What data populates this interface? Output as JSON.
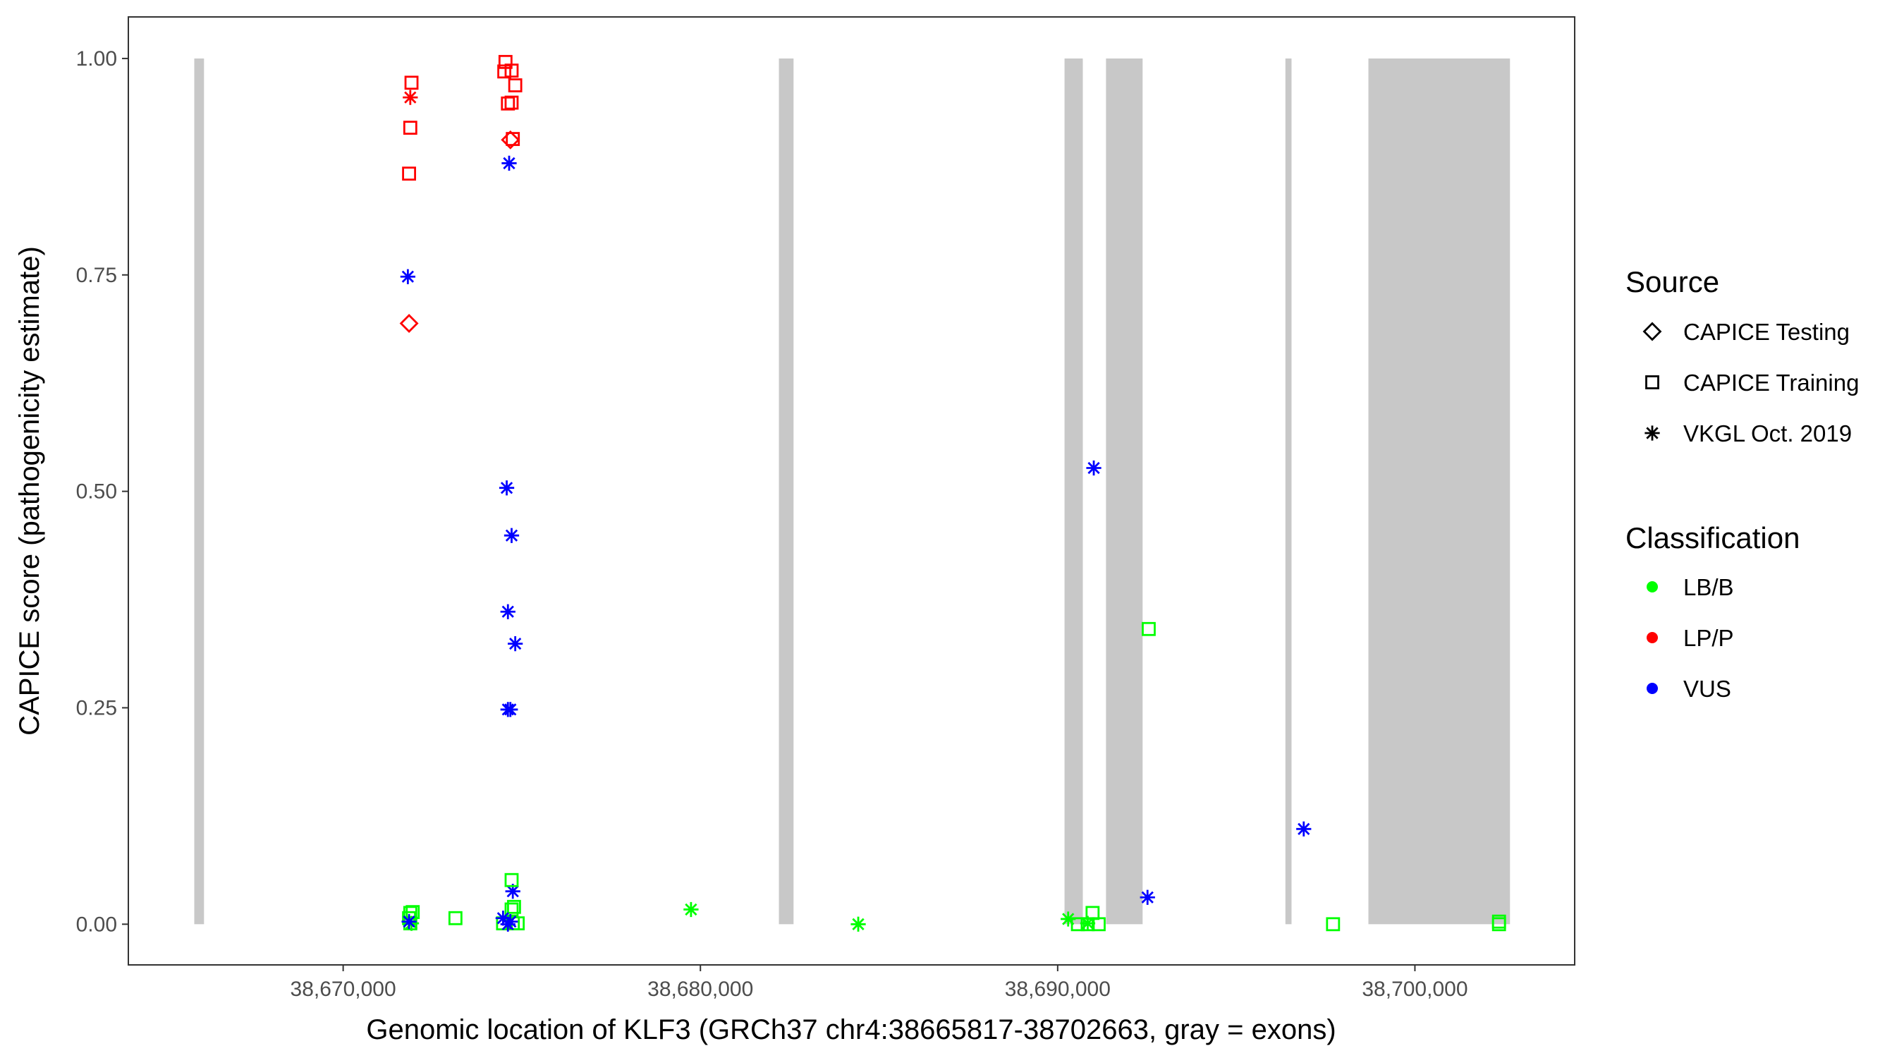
{
  "chart_data": {
    "type": "scatter",
    "xlabel": "Genomic location of KLF3 (GRCh37 chr4:38665817-38702663, gray = exons)",
    "ylabel": "CAPICE score (pathogenicity estimate)",
    "xlim": [
      38663987,
      38704472
    ],
    "ylim": [
      -0.047,
      1.048
    ],
    "x_ticks": [
      38670000,
      38680000,
      38690000,
      38700000
    ],
    "x_tick_labels": [
      "38,670,000",
      "38,680,000",
      "38,690,000",
      "38,700,000"
    ],
    "y_ticks": [
      0,
      0.25,
      0.5,
      0.75,
      1.0
    ],
    "y_tick_labels": [
      "0.00",
      "0.25",
      "0.50",
      "0.75",
      "1.00"
    ],
    "grid": false,
    "exon_color": "#c8c8c8",
    "exons": [
      [
        38665832,
        38666105
      ],
      [
        38682197,
        38682607
      ],
      [
        38690192,
        38690704
      ],
      [
        38691353,
        38692378
      ],
      [
        38696375,
        38696546
      ],
      [
        38698698,
        38702661
      ]
    ],
    "legend_placement": "right",
    "legend": {
      "source": {
        "title": "Source",
        "items": [
          {
            "label": "CAPICE Testing",
            "shape": "diamond"
          },
          {
            "label": "CAPICE Training",
            "shape": "square"
          },
          {
            "label": "VKGL Oct. 2019",
            "shape": "asterisk"
          }
        ]
      },
      "classification": {
        "title": "Classification",
        "items": [
          {
            "label": "LB/B",
            "color": "#00ff00"
          },
          {
            "label": "LP/P",
            "color": "#ff0000"
          },
          {
            "label": "VUS",
            "color": "#0000ff"
          }
        ]
      }
    },
    "points": [
      {
        "x": 38671913,
        "y": 0.972,
        "source": "CAPICE Training",
        "class": "LP/P"
      },
      {
        "x": 38671879,
        "y": 0.955,
        "source": "VKGL Oct. 2019",
        "class": "LP/P"
      },
      {
        "x": 38671879,
        "y": 0.92,
        "source": "CAPICE Training",
        "class": "LP/P"
      },
      {
        "x": 38671845,
        "y": 0.867,
        "source": "CAPICE Training",
        "class": "LP/P"
      },
      {
        "x": 38671845,
        "y": 0.694,
        "source": "CAPICE Testing",
        "class": "LP/P"
      },
      {
        "x": 38674544,
        "y": 0.996,
        "source": "CAPICE Training",
        "class": "LP/P"
      },
      {
        "x": 38674510,
        "y": 0.985,
        "source": "CAPICE Training",
        "class": "LP/P"
      },
      {
        "x": 38674715,
        "y": 0.986,
        "source": "CAPICE Training",
        "class": "LP/P"
      },
      {
        "x": 38674817,
        "y": 0.969,
        "source": "CAPICE Training",
        "class": "LP/P"
      },
      {
        "x": 38674612,
        "y": 0.948,
        "source": "CAPICE Training",
        "class": "LP/P"
      },
      {
        "x": 38674715,
        "y": 0.949,
        "source": "CAPICE Training",
        "class": "LP/P"
      },
      {
        "x": 38674749,
        "y": 0.907,
        "source": "CAPICE Training",
        "class": "LP/P"
      },
      {
        "x": 38674681,
        "y": 0.906,
        "source": "CAPICE Testing",
        "class": "LP/P"
      },
      {
        "x": 38674646,
        "y": 0.879,
        "source": "VKGL Oct. 2019",
        "class": "VUS"
      },
      {
        "x": 38671811,
        "y": 0.748,
        "source": "VKGL Oct. 2019",
        "class": "VUS"
      },
      {
        "x": 38674578,
        "y": 0.504,
        "source": "VKGL Oct. 2019",
        "class": "VUS"
      },
      {
        "x": 38674715,
        "y": 0.449,
        "source": "VKGL Oct. 2019",
        "class": "VUS"
      },
      {
        "x": 38674612,
        "y": 0.361,
        "source": "VKGL Oct. 2019",
        "class": "VUS"
      },
      {
        "x": 38674817,
        "y": 0.324,
        "source": "VKGL Oct. 2019",
        "class": "VUS"
      },
      {
        "x": 38674612,
        "y": 0.248,
        "source": "VKGL Oct. 2019",
        "class": "VUS"
      },
      {
        "x": 38674681,
        "y": 0.248,
        "source": "VKGL Oct. 2019",
        "class": "VUS"
      },
      {
        "x": 38674749,
        "y": 0.038,
        "source": "VKGL Oct. 2019",
        "class": "VUS"
      },
      {
        "x": 38691011,
        "y": 0.527,
        "source": "VKGL Oct. 2019",
        "class": "VUS"
      },
      {
        "x": 38692515,
        "y": 0.031,
        "source": "VKGL Oct. 2019",
        "class": "VUS"
      },
      {
        "x": 38696888,
        "y": 0.11,
        "source": "VKGL Oct. 2019",
        "class": "VUS"
      },
      {
        "x": 38671879,
        "y": 0.013,
        "source": "CAPICE Training",
        "class": "LB/B"
      },
      {
        "x": 38671947,
        "y": 0.014,
        "source": "CAPICE Training",
        "class": "LB/B"
      },
      {
        "x": 38671845,
        "y": 0.007,
        "source": "CAPICE Training",
        "class": "LB/B"
      },
      {
        "x": 38671879,
        "y": 0.001,
        "source": "CAPICE Training",
        "class": "LB/B"
      },
      {
        "x": 38671913,
        "y": 0.001,
        "source": "VKGL Oct. 2019",
        "class": "LB/B"
      },
      {
        "x": 38673143,
        "y": 0.007,
        "source": "CAPICE Training",
        "class": "LB/B"
      },
      {
        "x": 38674715,
        "y": 0.051,
        "source": "CAPICE Training",
        "class": "LB/B"
      },
      {
        "x": 38674715,
        "y": 0.017,
        "source": "CAPICE Training",
        "class": "LB/B"
      },
      {
        "x": 38674783,
        "y": 0.02,
        "source": "CAPICE Training",
        "class": "LB/B"
      },
      {
        "x": 38674476,
        "y": 0.001,
        "source": "CAPICE Training",
        "class": "LB/B"
      },
      {
        "x": 38674749,
        "y": 0.001,
        "source": "CAPICE Training",
        "class": "LB/B"
      },
      {
        "x": 38674886,
        "y": 0.001,
        "source": "CAPICE Training",
        "class": "LB/B"
      },
      {
        "x": 38671845,
        "y": 0.003,
        "source": "VKGL Oct. 2019",
        "class": "VUS"
      },
      {
        "x": 38674476,
        "y": 0.007,
        "source": "VKGL Oct. 2019",
        "class": "VUS"
      },
      {
        "x": 38674681,
        "y": 0.003,
        "source": "VKGL Oct. 2019",
        "class": "VUS"
      },
      {
        "x": 38674612,
        "y": 0.0,
        "source": "VKGL Oct. 2019",
        "class": "VUS"
      },
      {
        "x": 38679737,
        "y": 0.017,
        "source": "VKGL Oct. 2019",
        "class": "LB/B"
      },
      {
        "x": 38684418,
        "y": 0.0,
        "source": "VKGL Oct. 2019",
        "class": "LB/B"
      },
      {
        "x": 38690294,
        "y": 0.006,
        "source": "VKGL Oct. 2019",
        "class": "LB/B"
      },
      {
        "x": 38690567,
        "y": 0.0,
        "source": "CAPICE Training",
        "class": "LB/B"
      },
      {
        "x": 38690841,
        "y": 0.0,
        "source": "CAPICE Training",
        "class": "LB/B"
      },
      {
        "x": 38691148,
        "y": 0.0,
        "source": "CAPICE Training",
        "class": "LB/B"
      },
      {
        "x": 38690977,
        "y": 0.013,
        "source": "CAPICE Training",
        "class": "LB/B"
      },
      {
        "x": 38690841,
        "y": 0.001,
        "source": "VKGL Oct. 2019",
        "class": "LB/B"
      },
      {
        "x": 38692549,
        "y": 0.341,
        "source": "CAPICE Training",
        "class": "LB/B"
      },
      {
        "x": 38697708,
        "y": 0.0,
        "source": "CAPICE Training",
        "class": "LB/B"
      },
      {
        "x": 38702354,
        "y": 0.003,
        "source": "CAPICE Training",
        "class": "LB/B"
      },
      {
        "x": 38702354,
        "y": 0.0,
        "source": "CAPICE Training",
        "class": "LB/B"
      }
    ]
  }
}
